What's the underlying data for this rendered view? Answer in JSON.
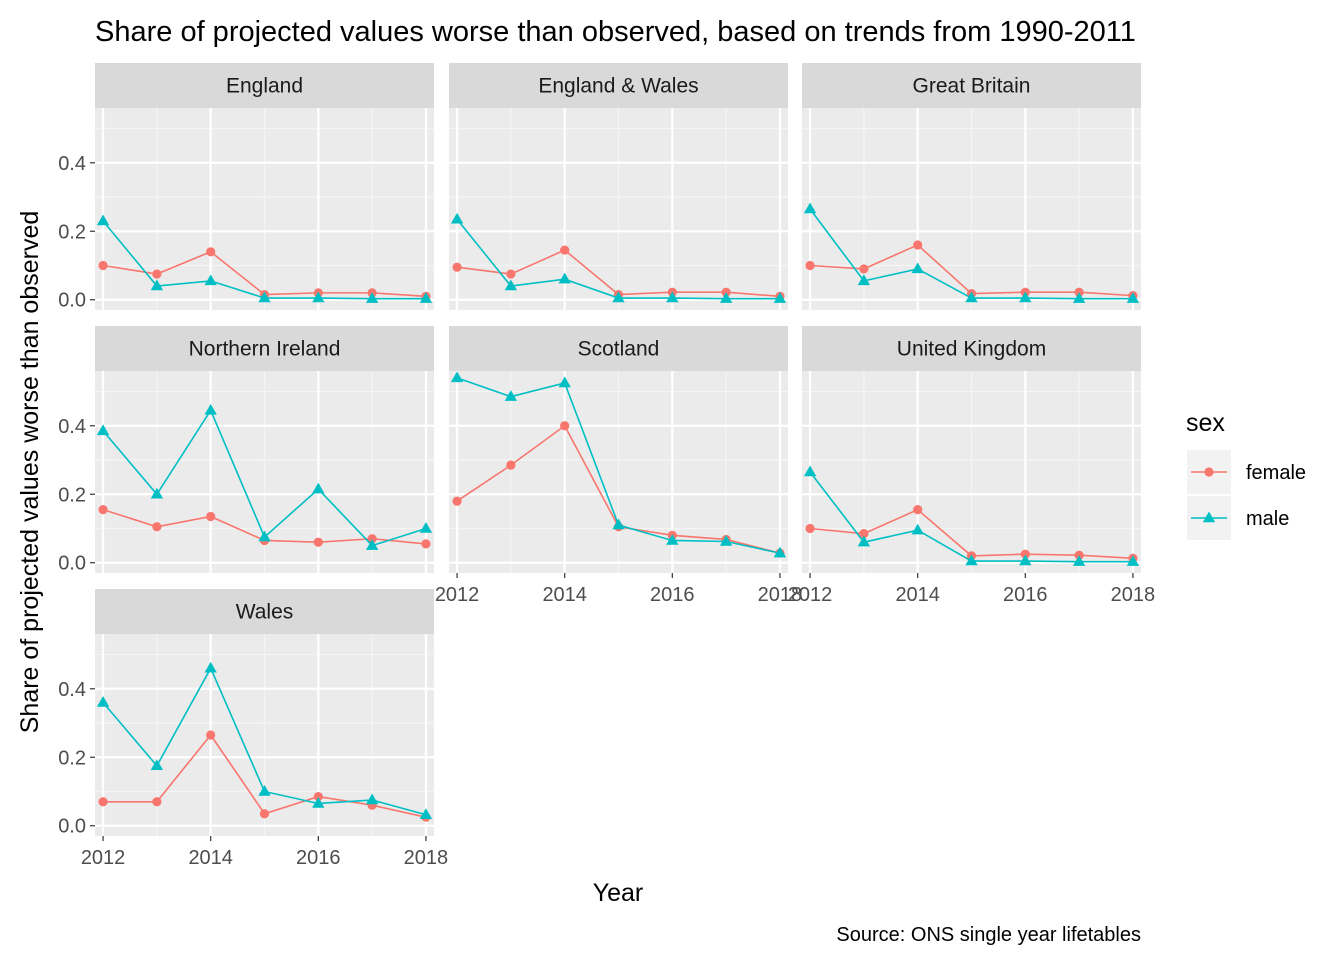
{
  "chart_data": {
    "type": "line",
    "title": "Share of projected values worse than observed, based on trends from 1990-2011",
    "xlabel": "Year",
    "ylabel": "Share of projected values worse than observed",
    "caption": "Source: ONS single year lifetables",
    "x": [
      2012,
      2013,
      2014,
      2015,
      2016,
      2017,
      2018
    ],
    "x_ticks": [
      2012,
      2014,
      2016,
      2018
    ],
    "y_ticks": [
      0.0,
      0.2,
      0.4
    ],
    "y_tick_labels": [
      "0.0",
      "0.2",
      "0.4"
    ],
    "ylim": [
      -0.03,
      0.56
    ],
    "xlim": [
      2011.85,
      2018.15
    ],
    "grid": true,
    "legend": {
      "title": "sex",
      "position": "right",
      "entries": [
        {
          "name": "female",
          "color": "#F8766D",
          "marker": "circle"
        },
        {
          "name": "male",
          "color": "#00BFC4",
          "marker": "triangle"
        }
      ]
    },
    "panels": [
      {
        "name": "England",
        "series": [
          {
            "name": "female",
            "values": [
              0.1,
              0.075,
              0.14,
              0.015,
              0.02,
              0.02,
              0.01
            ]
          },
          {
            "name": "male",
            "values": [
              0.23,
              0.04,
              0.055,
              0.005,
              0.005,
              0.003,
              0.003
            ]
          }
        ]
      },
      {
        "name": "England & Wales",
        "series": [
          {
            "name": "female",
            "values": [
              0.095,
              0.075,
              0.145,
              0.015,
              0.022,
              0.022,
              0.01
            ]
          },
          {
            "name": "male",
            "values": [
              0.235,
              0.04,
              0.06,
              0.005,
              0.005,
              0.003,
              0.003
            ]
          }
        ]
      },
      {
        "name": "Great Britain",
        "series": [
          {
            "name": "female",
            "values": [
              0.1,
              0.09,
              0.16,
              0.018,
              0.022,
              0.022,
              0.012
            ]
          },
          {
            "name": "male",
            "values": [
              0.265,
              0.055,
              0.09,
              0.005,
              0.005,
              0.003,
              0.003
            ]
          }
        ]
      },
      {
        "name": "Northern Ireland",
        "series": [
          {
            "name": "female",
            "values": [
              0.155,
              0.105,
              0.135,
              0.065,
              0.06,
              0.07,
              0.055
            ]
          },
          {
            "name": "male",
            "values": [
              0.385,
              0.2,
              0.445,
              0.075,
              0.215,
              0.05,
              0.1
            ]
          }
        ]
      },
      {
        "name": "Scotland",
        "series": [
          {
            "name": "female",
            "values": [
              0.18,
              0.285,
              0.4,
              0.105,
              0.08,
              0.068,
              0.028
            ]
          },
          {
            "name": "male",
            "values": [
              0.54,
              0.485,
              0.525,
              0.11,
              0.065,
              0.062,
              0.028
            ]
          }
        ]
      },
      {
        "name": "United Kingdom",
        "series": [
          {
            "name": "female",
            "values": [
              0.1,
              0.085,
              0.155,
              0.02,
              0.025,
              0.022,
              0.013
            ]
          },
          {
            "name": "male",
            "values": [
              0.265,
              0.06,
              0.095,
              0.005,
              0.005,
              0.003,
              0.003
            ]
          }
        ]
      },
      {
        "name": "Wales",
        "series": [
          {
            "name": "female",
            "values": [
              0.07,
              0.07,
              0.265,
              0.035,
              0.085,
              0.06,
              0.025
            ]
          },
          {
            "name": "male",
            "values": [
              0.36,
              0.175,
              0.46,
              0.1,
              0.065,
              0.075,
              0.032
            ]
          }
        ]
      }
    ]
  }
}
